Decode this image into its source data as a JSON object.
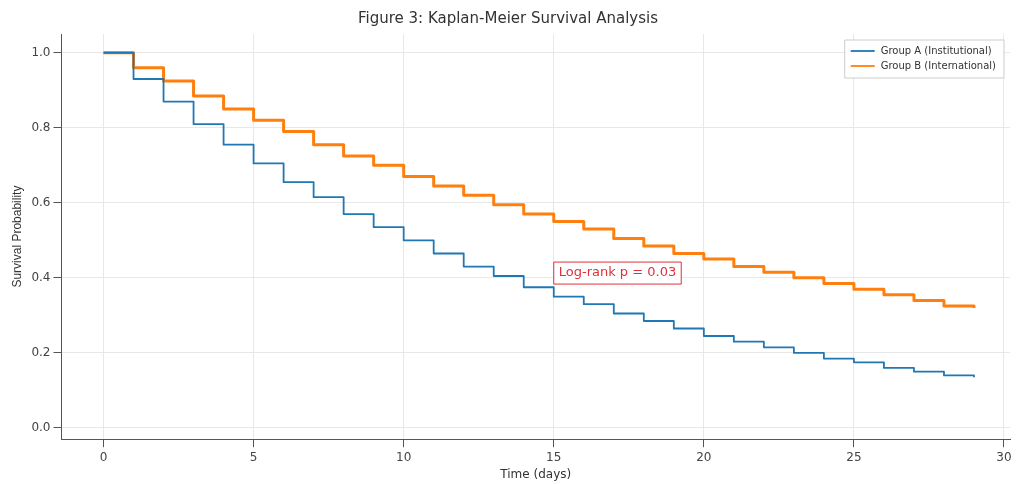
{
  "chart_data": {
    "type": "step",
    "title": "Figure 3: Kaplan-Meier Survival Analysis",
    "xlabel": "Time (days)",
    "ylabel": "Survival Probability",
    "x": [
      0,
      1,
      2,
      3,
      4,
      5,
      6,
      7,
      8,
      9,
      10,
      11,
      12,
      13,
      14,
      15,
      16,
      17,
      18,
      19,
      20,
      21,
      22,
      23,
      24,
      25,
      26,
      27,
      28,
      29
    ],
    "series": [
      {
        "name": "Group A (Institutional)",
        "color": "#1f77b4",
        "values": [
          1.0,
          0.93,
          0.87,
          0.81,
          0.755,
          0.705,
          0.655,
          0.615,
          0.57,
          0.535,
          0.5,
          0.465,
          0.43,
          0.405,
          0.375,
          0.35,
          0.33,
          0.305,
          0.285,
          0.265,
          0.245,
          0.23,
          0.215,
          0.2,
          0.185,
          0.175,
          0.16,
          0.15,
          0.14,
          0.135
        ]
      },
      {
        "name": "Group B (International)",
        "color": "#ff7f0e",
        "values": [
          1.0,
          0.96,
          0.925,
          0.885,
          0.85,
          0.82,
          0.79,
          0.755,
          0.725,
          0.7,
          0.67,
          0.645,
          0.62,
          0.595,
          0.57,
          0.55,
          0.53,
          0.505,
          0.485,
          0.465,
          0.45,
          0.43,
          0.415,
          0.4,
          0.385,
          0.37,
          0.355,
          0.34,
          0.325,
          0.32
        ]
      }
    ],
    "xlim": [
      -1.4,
      30.2
    ],
    "xticks": [
      0,
      5,
      10,
      15,
      20,
      25,
      30
    ],
    "ylim": [
      -0.03,
      1.05
    ],
    "yticks": [
      {
        "value": 0,
        "label": "0.0"
      },
      {
        "value": 0.2,
        "label": "0.2"
      },
      {
        "value": 0.4,
        "label": "0.4"
      },
      {
        "value": 0.6,
        "label": "0.6"
      },
      {
        "value": 0.8,
        "label": "0.8"
      },
      {
        "value": 1,
        "label": "1.0"
      }
    ],
    "annotations": [
      "Log-rank p = 0.03"
    ],
    "grid": true,
    "legend": "top right",
    "line_style": "solid",
    "marker": "none"
  }
}
